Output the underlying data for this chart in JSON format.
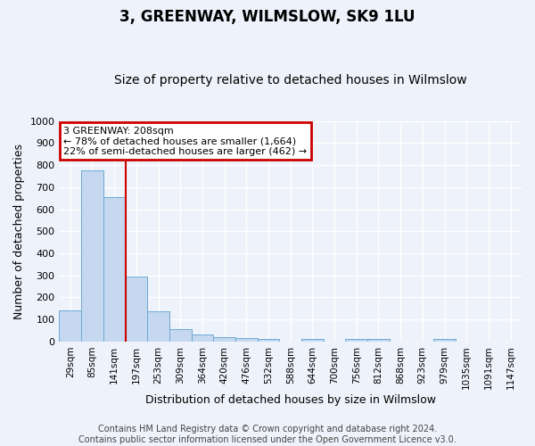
{
  "title": "3, GREENWAY, WILMSLOW, SK9 1LU",
  "subtitle": "Size of property relative to detached houses in Wilmslow",
  "xlabel": "Distribution of detached houses by size in Wilmslow",
  "ylabel": "Number of detached properties",
  "bar_labels": [
    "29sqm",
    "85sqm",
    "141sqm",
    "197sqm",
    "253sqm",
    "309sqm",
    "364sqm",
    "420sqm",
    "476sqm",
    "532sqm",
    "588sqm",
    "644sqm",
    "700sqm",
    "756sqm",
    "812sqm",
    "868sqm",
    "923sqm",
    "979sqm",
    "1035sqm",
    "1091sqm",
    "1147sqm"
  ],
  "bar_values": [
    140,
    775,
    655,
    295,
    135,
    57,
    30,
    20,
    17,
    12,
    0,
    10,
    0,
    10,
    10,
    0,
    0,
    10,
    0,
    0,
    0
  ],
  "bar_color": "#c5d8f0",
  "bar_edge_color": "#6aaad4",
  "ylim": [
    0,
    1000
  ],
  "yticks": [
    0,
    100,
    200,
    300,
    400,
    500,
    600,
    700,
    800,
    900,
    1000
  ],
  "red_line_x": 2.5,
  "annotation_text": "3 GREENWAY: 208sqm\n← 78% of detached houses are smaller (1,664)\n22% of semi-detached houses are larger (462) →",
  "annotation_box_facecolor": "#ffffff",
  "annotation_box_edgecolor": "#cc0000",
  "footer_line1": "Contains HM Land Registry data © Crown copyright and database right 2024.",
  "footer_line2": "Contains public sector information licensed under the Open Government Licence v3.0.",
  "background_color": "#eef2fa",
  "grid_color": "#ffffff",
  "title_fontsize": 12,
  "subtitle_fontsize": 10,
  "axis_label_fontsize": 9,
  "tick_fontsize": 7.5,
  "footer_fontsize": 7
}
